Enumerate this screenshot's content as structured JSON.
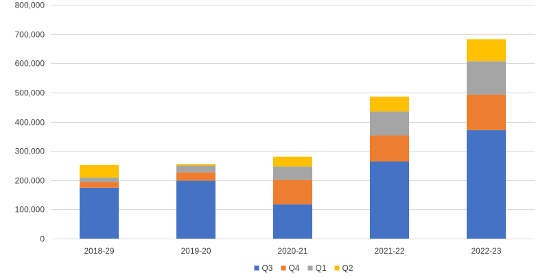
{
  "chart_data": {
    "type": "bar",
    "stacked": true,
    "categories": [
      "2018-29",
      "2019-20",
      "2020-21",
      "2021-22",
      "2022-23"
    ],
    "series": [
      {
        "name": "Q3",
        "values": [
          174000,
          198000,
          117000,
          264000,
          371000
        ],
        "color": "#4472C4"
      },
      {
        "name": "Q4",
        "values": [
          20000,
          29000,
          84000,
          89000,
          122000
        ],
        "color": "#ED7D31"
      },
      {
        "name": "Q1",
        "values": [
          15000,
          23000,
          46000,
          82000,
          114000
        ],
        "color": "#A5A5A5"
      },
      {
        "name": "Q2",
        "values": [
          43000,
          5000,
          33000,
          51000,
          75000
        ],
        "color": "#FFC000"
      }
    ],
    "title": "",
    "xlabel": "",
    "ylabel": "",
    "ylim": [
      0,
      800000
    ],
    "yticks": [
      0,
      100000,
      200000,
      300000,
      400000,
      500000,
      600000,
      700000,
      800000
    ],
    "ytick_labels": [
      "0",
      "100,000",
      "200,000",
      "300,000",
      "400,000",
      "500,000",
      "600,000",
      "700,000",
      "800,000"
    ],
    "grid": true,
    "legend_position": "bottom"
  }
}
